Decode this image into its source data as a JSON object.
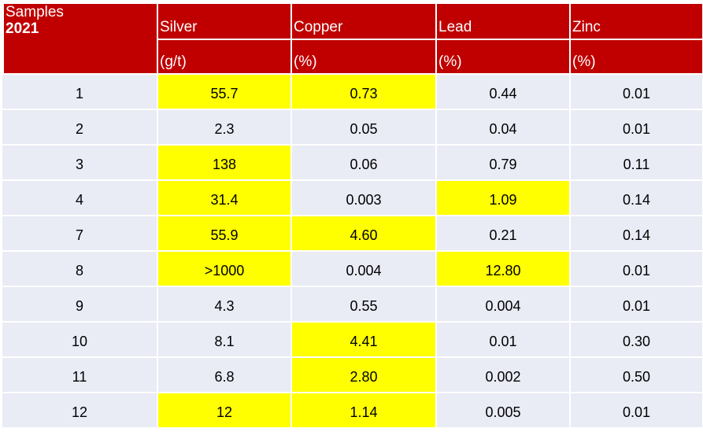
{
  "table": {
    "corner_label": "Samples",
    "corner_year": "2021",
    "columns": [
      {
        "name": "Silver",
        "unit": "(g/t)"
      },
      {
        "name": "Copper",
        "unit": "(%)"
      },
      {
        "name": "Lead",
        "unit": "(%)"
      },
      {
        "name": "Zinc",
        "unit": "(%)"
      }
    ],
    "rows": [
      {
        "sample": "1",
        "values": [
          "55.7",
          "0.73",
          "0.44",
          "0.01"
        ],
        "highlight": [
          true,
          true,
          false,
          false
        ]
      },
      {
        "sample": "2",
        "values": [
          "2.3",
          "0.05",
          "0.04",
          "0.01"
        ],
        "highlight": [
          false,
          false,
          false,
          false
        ]
      },
      {
        "sample": "3",
        "values": [
          "138",
          "0.06",
          "0.79",
          "0.11"
        ],
        "highlight": [
          true,
          false,
          false,
          false
        ]
      },
      {
        "sample": "4",
        "values": [
          "31.4",
          "0.003",
          "1.09",
          "0.14"
        ],
        "highlight": [
          true,
          false,
          true,
          false
        ]
      },
      {
        "sample": "7",
        "values": [
          "55.9",
          "4.60",
          "0.21",
          "0.14"
        ],
        "highlight": [
          true,
          true,
          false,
          false
        ]
      },
      {
        "sample": "8",
        "values": [
          ">1000",
          "0.004",
          "12.80",
          "0.01"
        ],
        "highlight": [
          true,
          false,
          true,
          false
        ]
      },
      {
        "sample": "9",
        "values": [
          "4.3",
          "0.55",
          "0.004",
          "0.01"
        ],
        "highlight": [
          false,
          false,
          false,
          false
        ]
      },
      {
        "sample": "10",
        "values": [
          "8.1",
          "4.41",
          "0.01",
          "0.30"
        ],
        "highlight": [
          false,
          true,
          false,
          false
        ]
      },
      {
        "sample": "11",
        "values": [
          "6.8",
          "2.80",
          "0.002",
          "0.50"
        ],
        "highlight": [
          false,
          true,
          false,
          false
        ]
      },
      {
        "sample": "12",
        "values": [
          "12",
          "1.14",
          "0.005",
          "0.01"
        ],
        "highlight": [
          true,
          true,
          false,
          false
        ]
      }
    ],
    "colors": {
      "header": "#c00000",
      "row": "#e9ebf5",
      "highlight": "#ffff00"
    }
  }
}
